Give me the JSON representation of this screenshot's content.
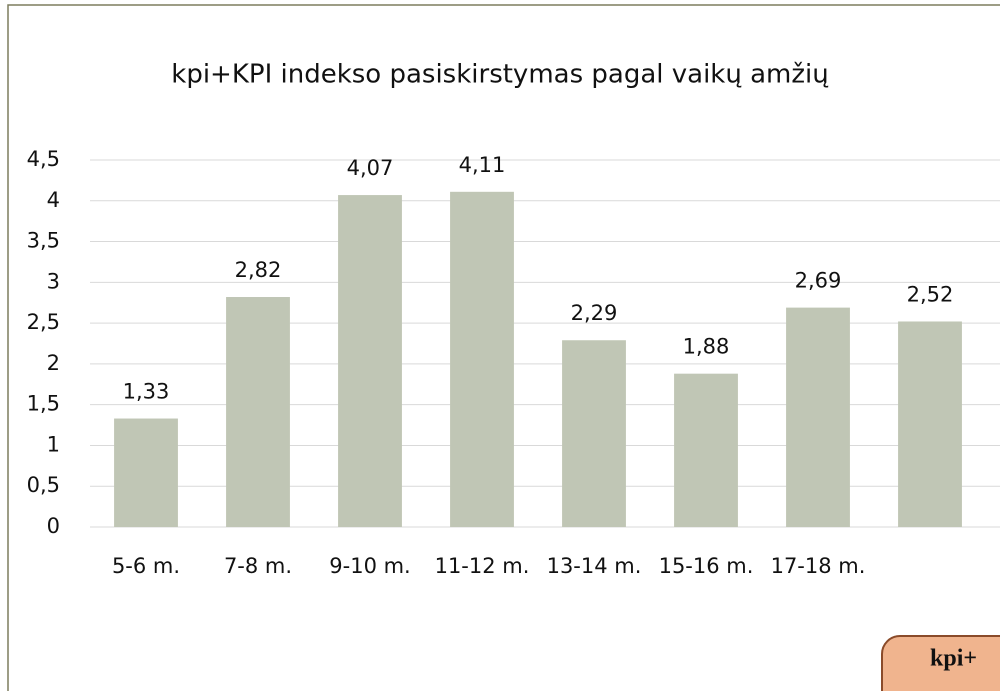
{
  "chart_data": {
    "type": "bar",
    "title": "kpi+KPI indekso pasiskirstymas pagal vaikų amžių",
    "categories": [
      "5-6 m.",
      "7-8 m.",
      "9-10 m.",
      "11-12 m.",
      "13-14 m.",
      "15-16 m.",
      "17-18 m.",
      null
    ],
    "values": [
      1.33,
      2.82,
      4.07,
      4.11,
      2.29,
      1.88,
      2.69,
      2.52
    ],
    "value_labels": [
      "1,33",
      "2,82",
      "4,07",
      "4,11",
      "2,29",
      "1,88",
      "2,69",
      "2,52"
    ],
    "color": "#c0c6b5",
    "ylim": [
      0,
      4.5
    ],
    "yticks": [
      0,
      {
        "value": 0.5,
        "label": "0,5"
      },
      1,
      {
        "value": 1.5,
        "label": "1,5"
      },
      2,
      {
        "value": 2.5,
        "label": "2,5"
      },
      3,
      {
        "value": 3.5,
        "label": "3,5"
      },
      4,
      {
        "value": 4.5,
        "label": "4,5"
      }
    ],
    "grid": true
  },
  "overlay_text": "kpi+"
}
